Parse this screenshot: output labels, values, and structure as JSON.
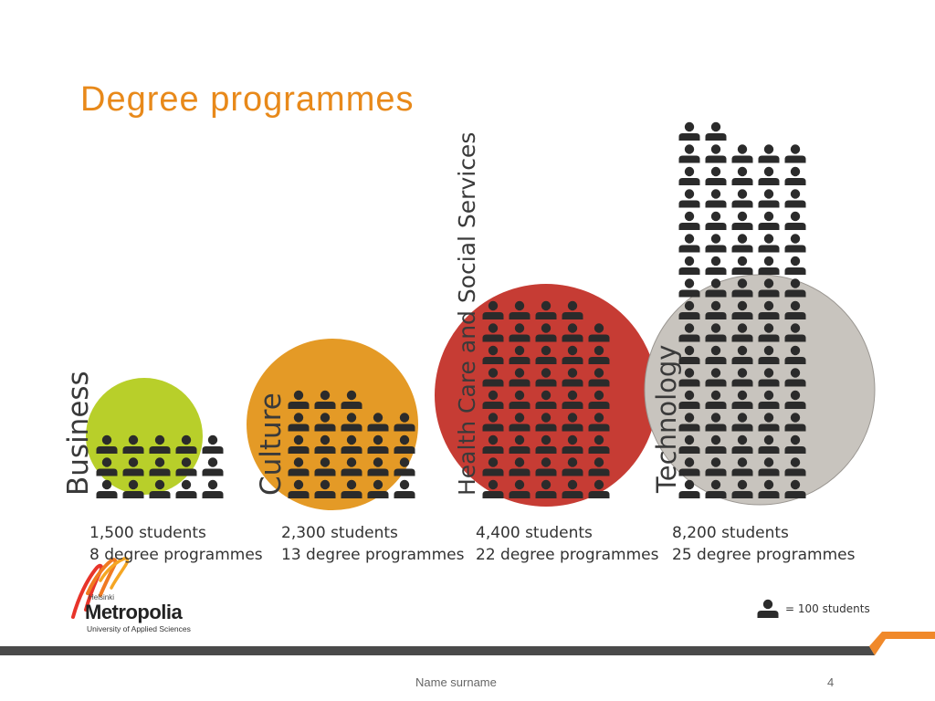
{
  "slide": {
    "title": "Degree programmes",
    "footer_name": "Name surname",
    "page_number": "4"
  },
  "legend": {
    "icon": "person-icon",
    "label": "= 100 students"
  },
  "logo": {
    "top_line": "Helsinki",
    "name": "Metropolia",
    "subtitle": "University of Applied Sciences"
  },
  "colors": {
    "title": "#e8891a",
    "business": "#b8cf2a",
    "culture": "#e49a26",
    "health": "#c63c34",
    "technology": "#c8c4be",
    "icon": "#2b2b2b",
    "band": "#4a4a4a",
    "accent": "#f0892a"
  },
  "chart_data": {
    "type": "pictogram",
    "unit": "= 100 students",
    "categories": [
      "Business",
      "Culture",
      "Health Care and Social Services",
      "Technology"
    ],
    "students": [
      1500,
      2300,
      4400,
      8200
    ],
    "students_labels": [
      "1,500 students",
      "2,300 students",
      "4,400 students",
      "8,200 students"
    ],
    "programmes": [
      8,
      13,
      22,
      25
    ],
    "programmes_labels": [
      "8 degree programmes",
      "13 degree programmes",
      "22 degree programmes",
      "25 degree programmes"
    ]
  }
}
